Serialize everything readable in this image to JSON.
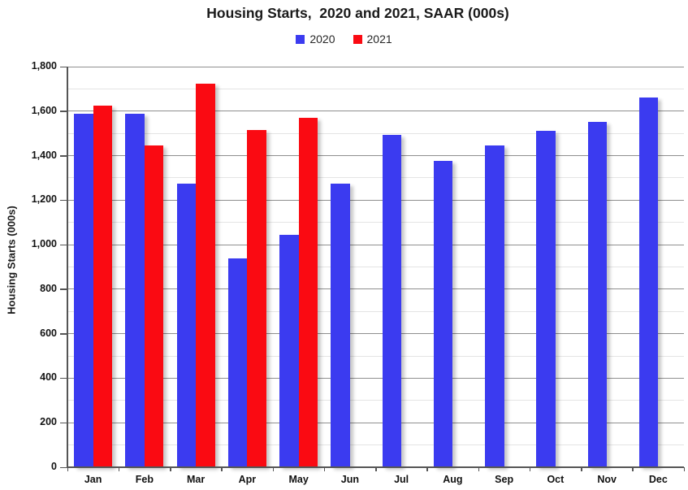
{
  "chart_data": {
    "type": "bar",
    "title": "Housing Starts,  2020 and 2021, SAAR (000s)",
    "xlabel": "",
    "ylabel": "Housing Starts (000s)",
    "categories": [
      "Jan",
      "Feb",
      "Mar",
      "Apr",
      "May",
      "Jun",
      "Jul",
      "Aug",
      "Sep",
      "Oct",
      "Nov",
      "Dec"
    ],
    "series": [
      {
        "name": "2020",
        "color": "#3b3bf0",
        "values": [
          1590,
          1590,
          1275,
          940,
          1045,
          1275,
          1495,
          1375,
          1445,
          1510,
          1550,
          1660
        ]
      },
      {
        "name": "2021",
        "color": "#fa0a12",
        "values": [
          1625,
          1445,
          1725,
          1515,
          1570,
          null,
          null,
          null,
          null,
          null,
          null,
          null
        ]
      }
    ],
    "ylim": [
      0,
      1800
    ],
    "y_axis": {
      "major_step": 200,
      "minor_step": 100,
      "tick_labels": [
        "0",
        "200",
        "400",
        "600",
        "800",
        "1,000",
        "1,200",
        "1,400",
        "1,600",
        "1,800"
      ]
    },
    "grid": true,
    "legend_position": "top"
  },
  "colors": {
    "background": "#ffffff",
    "bar_2020": "#3b3bf0",
    "bar_2021": "#fa0a12",
    "grid_major": "#8f8f8f",
    "grid_minor": "#e4e4e4",
    "axis": "#555555",
    "text": "#1a1a1a"
  }
}
